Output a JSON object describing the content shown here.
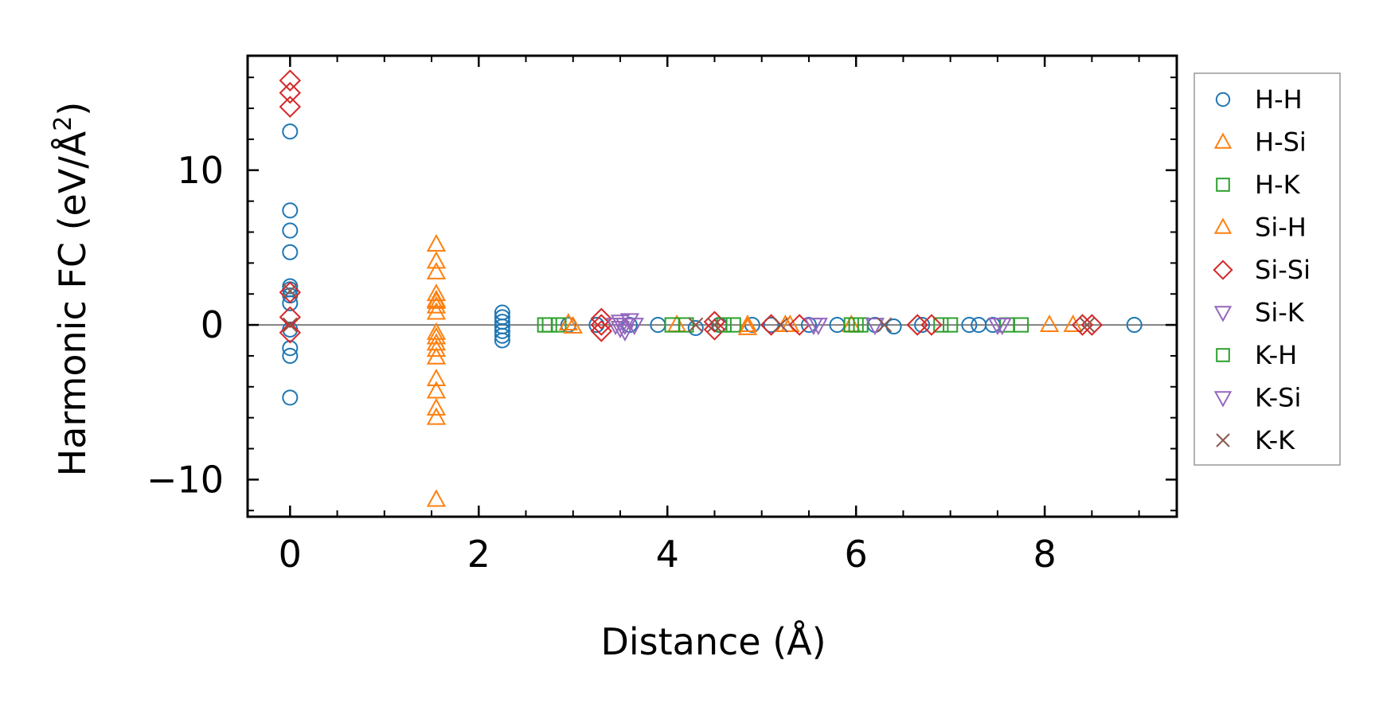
{
  "chart_data": {
    "type": "scatter",
    "xlabel": "Distance (Å)",
    "ylabel_main": "Harmonic FC (eV/Å",
    "ylabel_sup": "2",
    "ylabel_close": ")",
    "xlim": [
      -0.45,
      9.4
    ],
    "ylim": [
      -12.4,
      17.4
    ],
    "xticks": [
      0,
      2,
      4,
      6,
      8
    ],
    "xtick_labels": [
      "0",
      "2",
      "4",
      "6",
      "8"
    ],
    "yticks": [
      -10,
      0,
      10
    ],
    "ytick_labels": [
      "−10",
      "0",
      "10"
    ],
    "x_minor_step": 0.5,
    "y_minor_step": 2,
    "reference_line_y": 0,
    "legend_position": "outside-right",
    "series": [
      {
        "name": "H-H",
        "marker": "circle",
        "color": "#1f77b4",
        "points": [
          [
            0,
            12.5
          ],
          [
            0,
            7.4
          ],
          [
            0,
            6.1
          ],
          [
            0,
            4.7
          ],
          [
            0,
            2.5
          ],
          [
            0,
            2.3
          ],
          [
            0,
            1.9
          ],
          [
            0,
            1.4
          ],
          [
            0,
            -0.3
          ],
          [
            0,
            -1.5
          ],
          [
            0,
            -2.0
          ],
          [
            0,
            -4.7
          ],
          [
            2.25,
            0.8
          ],
          [
            2.25,
            0.5
          ],
          [
            2.25,
            0.2
          ],
          [
            2.25,
            -0.1
          ],
          [
            2.25,
            -0.4
          ],
          [
            2.25,
            -0.7
          ],
          [
            2.25,
            -1.0
          ],
          [
            2.95,
            0
          ],
          [
            3.25,
            0
          ],
          [
            3.6,
            0
          ],
          [
            3.9,
            0
          ],
          [
            4.3,
            -0.2
          ],
          [
            4.55,
            0
          ],
          [
            4.9,
            0
          ],
          [
            5.1,
            0
          ],
          [
            5.5,
            0
          ],
          [
            5.8,
            0
          ],
          [
            6.2,
            0
          ],
          [
            6.4,
            -0.1
          ],
          [
            6.7,
            0
          ],
          [
            7.2,
            0
          ],
          [
            7.3,
            0
          ],
          [
            7.45,
            0
          ],
          [
            8.95,
            0
          ]
        ]
      },
      {
        "name": "H-Si",
        "marker": "triangle-up",
        "color": "#ff7f0e",
        "points": [
          [
            1.55,
            5.2
          ],
          [
            1.55,
            4.1
          ],
          [
            1.55,
            3.4
          ],
          [
            1.55,
            2.0
          ],
          [
            1.55,
            1.6
          ],
          [
            1.55,
            1.2
          ],
          [
            1.55,
            0.8
          ],
          [
            1.55,
            -0.8
          ],
          [
            1.55,
            -1.2
          ],
          [
            1.55,
            -1.6
          ],
          [
            1.55,
            -2.1
          ],
          [
            1.55,
            -3.5
          ],
          [
            1.55,
            -4.3
          ],
          [
            1.55,
            -5.4
          ],
          [
            1.55,
            -6.0
          ],
          [
            1.55,
            -11.3
          ],
          [
            2.95,
            0.1
          ],
          [
            4.1,
            0
          ],
          [
            4.85,
            0
          ],
          [
            5.25,
            0
          ],
          [
            5.95,
            0
          ],
          [
            8.05,
            0
          ],
          [
            8.3,
            0
          ]
        ]
      },
      {
        "name": "H-K",
        "marker": "square",
        "color": "#2ca02c",
        "points": [
          [
            2.7,
            0
          ],
          [
            2.85,
            0
          ],
          [
            4.05,
            0
          ],
          [
            4.2,
            0
          ],
          [
            4.7,
            0
          ],
          [
            5.95,
            0
          ],
          [
            6.05,
            0
          ],
          [
            6.9,
            0
          ],
          [
            7.6,
            0
          ],
          [
            7.75,
            0
          ]
        ]
      },
      {
        "name": "Si-H",
        "marker": "triangle-up",
        "color": "#ff7f0e",
        "points": [
          [
            1.55,
            -0.5
          ],
          [
            1.55,
            1.5
          ],
          [
            3.0,
            -0.1
          ],
          [
            4.85,
            -0.2
          ],
          [
            5.3,
            0
          ]
        ]
      },
      {
        "name": "Si-Si",
        "marker": "diamond",
        "color": "#d62728",
        "points": [
          [
            0,
            15.8
          ],
          [
            0,
            15.0
          ],
          [
            0,
            14.1
          ],
          [
            0,
            2.1
          ],
          [
            0,
            0.5
          ],
          [
            0,
            -0.5
          ],
          [
            3.3,
            0.4
          ],
          [
            3.3,
            0
          ],
          [
            3.3,
            -0.4
          ],
          [
            4.5,
            0.2
          ],
          [
            4.5,
            -0.3
          ],
          [
            5.1,
            0
          ],
          [
            5.4,
            0
          ],
          [
            6.65,
            0
          ],
          [
            6.8,
            0
          ],
          [
            8.4,
            0
          ],
          [
            8.5,
            0
          ]
        ]
      },
      {
        "name": "Si-K",
        "marker": "triangle-down",
        "color": "#9467bd",
        "points": [
          [
            3.5,
            0.2
          ],
          [
            3.55,
            0
          ],
          [
            3.6,
            0.3
          ],
          [
            3.5,
            -0.2
          ],
          [
            3.65,
            0
          ],
          [
            5.6,
            0
          ],
          [
            6.2,
            0
          ],
          [
            7.5,
            0
          ]
        ]
      },
      {
        "name": "K-H",
        "marker": "square",
        "color": "#2ca02c",
        "points": [
          [
            2.75,
            0
          ],
          [
            4.6,
            0
          ],
          [
            6.0,
            0
          ],
          [
            7.0,
            0
          ]
        ]
      },
      {
        "name": "K-Si",
        "marker": "triangle-down",
        "color": "#9467bd",
        "points": [
          [
            3.45,
            0
          ],
          [
            3.55,
            -0.4
          ],
          [
            5.55,
            0
          ],
          [
            7.55,
            0
          ]
        ]
      },
      {
        "name": "K-K",
        "marker": "x",
        "color": "#8c564b",
        "points": [
          [
            0,
            2.2
          ],
          [
            0,
            0
          ],
          [
            4.3,
            0
          ],
          [
            4.5,
            0
          ],
          [
            5.2,
            0
          ],
          [
            6.3,
            0
          ],
          [
            8.45,
            0
          ]
        ]
      }
    ]
  }
}
